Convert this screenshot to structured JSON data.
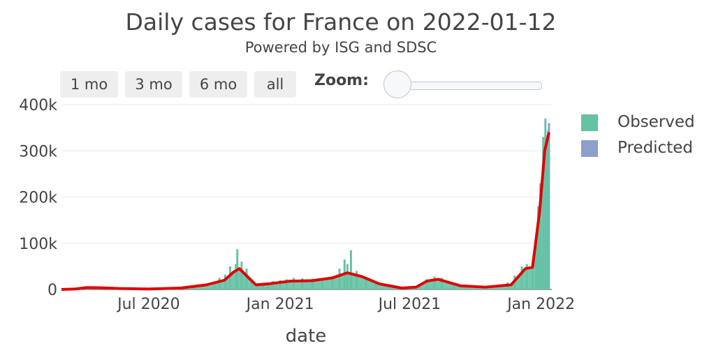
{
  "title": "Daily cases for France on 2022-01-12",
  "subtitle": "Powered by ISG and SDSC",
  "range_buttons": [
    "1 mo",
    "3 mo",
    "6 mo",
    "all"
  ],
  "zoom_label": "Zoom:",
  "colors": {
    "observed": "#66c2a5",
    "predicted": "#8da0cb",
    "trend": "#e00000",
    "grid": "#e8e8e8"
  },
  "chart_data": {
    "type": "bar",
    "title": "Daily cases for France on 2022-01-12",
    "subtitle": "Powered by ISG and SDSC",
    "xlabel": "date",
    "ylabel": "",
    "x_range": [
      "2020-03-01",
      "2022-01-16"
    ],
    "ylim": [
      0,
      400000
    ],
    "yticks": [
      0,
      100000,
      200000,
      300000,
      400000
    ],
    "ytick_labels": [
      "0",
      "100k",
      "200k",
      "300k",
      "400k"
    ],
    "xticks": [
      "2020-07-01",
      "2021-01-01",
      "2021-07-01",
      "2022-01-01"
    ],
    "xtick_labels": [
      "Jul 2020",
      "Jan 2021",
      "Jul 2021",
      "Jan 2022"
    ],
    "legend": {
      "position": "right",
      "entries": [
        "Observed",
        "Predicted"
      ]
    },
    "series": [
      {
        "name": "Observed",
        "kind": "bar",
        "points": [
          [
            "2020-03-15",
            700
          ],
          [
            "2020-03-25",
            4000
          ],
          [
            "2020-04-05",
            6000
          ],
          [
            "2020-04-15",
            7000
          ],
          [
            "2020-04-25",
            4000
          ],
          [
            "2020-05-10",
            2000
          ],
          [
            "2020-06-01",
            1000
          ],
          [
            "2020-07-01",
            800
          ],
          [
            "2020-08-01",
            3000
          ],
          [
            "2020-09-01",
            8000
          ],
          [
            "2020-09-15",
            10000
          ],
          [
            "2020-10-01",
            15000
          ],
          [
            "2020-10-08",
            25000
          ],
          [
            "2020-10-16",
            32000
          ],
          [
            "2020-10-23",
            50000
          ],
          [
            "2020-10-31",
            55000
          ],
          [
            "2020-11-02",
            87000
          ],
          [
            "2020-11-08",
            60000
          ],
          [
            "2020-11-15",
            45000
          ],
          [
            "2020-11-22",
            20000
          ],
          [
            "2020-12-01",
            10000
          ],
          [
            "2020-12-08",
            12000
          ],
          [
            "2020-12-15",
            15000
          ],
          [
            "2020-12-22",
            18000
          ],
          [
            "2021-01-01",
            20000
          ],
          [
            "2021-01-10",
            22000
          ],
          [
            "2021-01-20",
            25000
          ],
          [
            "2021-02-01",
            24000
          ],
          [
            "2021-02-15",
            23000
          ],
          [
            "2021-03-01",
            25000
          ],
          [
            "2021-03-15",
            28000
          ],
          [
            "2021-03-25",
            45000
          ],
          [
            "2021-04-01",
            65000
          ],
          [
            "2021-04-05",
            55000
          ],
          [
            "2021-04-10",
            85000
          ],
          [
            "2021-04-18",
            40000
          ],
          [
            "2021-05-01",
            25000
          ],
          [
            "2021-05-15",
            15000
          ],
          [
            "2021-06-01",
            8000
          ],
          [
            "2021-06-15",
            3000
          ],
          [
            "2021-07-01",
            3000
          ],
          [
            "2021-07-15",
            10000
          ],
          [
            "2021-07-25",
            22000
          ],
          [
            "2021-08-05",
            28000
          ],
          [
            "2021-08-15",
            25000
          ],
          [
            "2021-09-01",
            12000
          ],
          [
            "2021-09-15",
            8000
          ],
          [
            "2021-10-01",
            5000
          ],
          [
            "2021-10-15",
            5000
          ],
          [
            "2021-11-01",
            7000
          ],
          [
            "2021-11-15",
            15000
          ],
          [
            "2021-11-25",
            30000
          ],
          [
            "2021-12-05",
            50000
          ],
          [
            "2021-12-12",
            55000
          ],
          [
            "2021-12-20",
            60000
          ],
          [
            "2021-12-25",
            100000
          ],
          [
            "2021-12-28",
            180000
          ],
          [
            "2021-12-31",
            230000
          ],
          [
            "2022-01-02",
            70000
          ],
          [
            "2022-01-04",
            330000
          ],
          [
            "2022-01-06",
            300000
          ],
          [
            "2022-01-07",
            370000
          ],
          [
            "2022-01-08",
            300000
          ]
        ]
      },
      {
        "name": "Predicted",
        "kind": "bar",
        "points": [
          [
            "2022-01-09",
            310000
          ],
          [
            "2022-01-10",
            330000
          ],
          [
            "2022-01-11",
            345000
          ],
          [
            "2022-01-12",
            360000
          ]
        ]
      },
      {
        "name": "",
        "kind": "line",
        "points": [
          [
            "2020-03-01",
            0
          ],
          [
            "2020-03-20",
            1000
          ],
          [
            "2020-04-05",
            4000
          ],
          [
            "2020-04-25",
            3500
          ],
          [
            "2020-05-20",
            2000
          ],
          [
            "2020-07-01",
            1000
          ],
          [
            "2020-08-15",
            3000
          ],
          [
            "2020-09-20",
            10000
          ],
          [
            "2020-10-15",
            20000
          ],
          [
            "2020-10-28",
            38000
          ],
          [
            "2020-11-05",
            45000
          ],
          [
            "2020-11-18",
            25000
          ],
          [
            "2020-11-28",
            10000
          ],
          [
            "2020-12-15",
            12000
          ],
          [
            "2021-01-15",
            18000
          ],
          [
            "2021-02-15",
            19000
          ],
          [
            "2021-03-15",
            25000
          ],
          [
            "2021-04-05",
            36000
          ],
          [
            "2021-04-25",
            28000
          ],
          [
            "2021-05-20",
            12000
          ],
          [
            "2021-06-20",
            3000
          ],
          [
            "2021-07-10",
            5000
          ],
          [
            "2021-07-25",
            18000
          ],
          [
            "2021-08-10",
            22000
          ],
          [
            "2021-09-10",
            8000
          ],
          [
            "2021-10-15",
            5000
          ],
          [
            "2021-11-20",
            10000
          ],
          [
            "2021-12-10",
            45000
          ],
          [
            "2021-12-20",
            48000
          ],
          [
            "2021-12-30",
            170000
          ],
          [
            "2022-01-06",
            300000
          ],
          [
            "2022-01-12",
            340000
          ]
        ]
      }
    ]
  }
}
